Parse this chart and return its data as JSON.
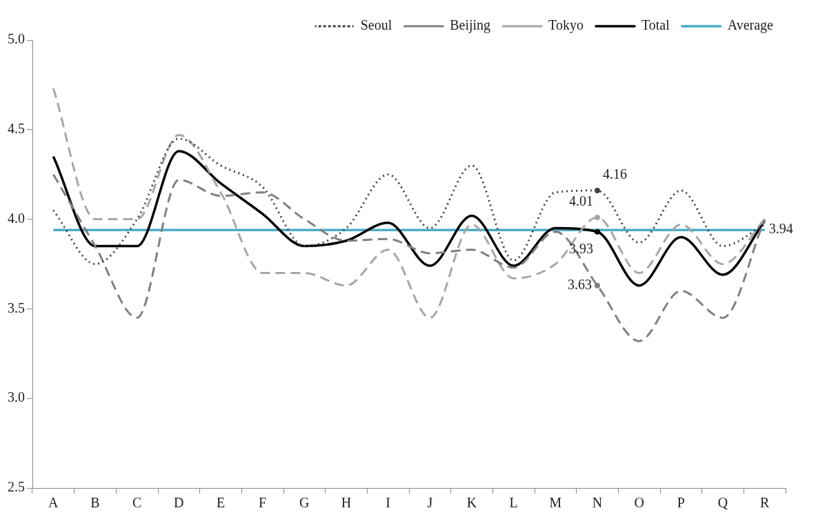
{
  "chart_data": {
    "type": "line",
    "categories": [
      "A",
      "B",
      "C",
      "D",
      "E",
      "F",
      "G",
      "H",
      "I",
      "J",
      "K",
      "L",
      "M",
      "N",
      "O",
      "P",
      "Q",
      "R"
    ],
    "series": [
      {
        "name": "Seoul",
        "color": "#404040",
        "line_style": "dotted",
        "values": [
          4.05,
          3.75,
          4.0,
          4.45,
          4.3,
          4.18,
          3.85,
          3.95,
          4.25,
          3.95,
          4.3,
          3.77,
          4.15,
          4.16,
          3.87,
          4.16,
          3.85,
          3.97
        ],
        "value_labels": [
          null,
          null,
          null,
          null,
          null,
          null,
          null,
          null,
          null,
          null,
          null,
          null,
          null,
          "4.16",
          null,
          null,
          null,
          null
        ]
      },
      {
        "name": "Beijing",
        "color": "#808080",
        "line_style": "dashed",
        "values": [
          4.25,
          3.85,
          3.45,
          4.22,
          4.13,
          4.15,
          4.0,
          3.88,
          3.89,
          3.81,
          3.83,
          3.73,
          3.93,
          3.63,
          3.32,
          3.6,
          3.45,
          4.0
        ],
        "value_labels": [
          null,
          null,
          null,
          null,
          null,
          null,
          null,
          null,
          null,
          null,
          null,
          null,
          null,
          "3.63",
          null,
          null,
          null,
          null
        ]
      },
      {
        "name": "Tokyo",
        "color": "#a6a6a6",
        "line_style": "dashed",
        "values": [
          4.73,
          4.0,
          4.0,
          4.47,
          4.15,
          3.7,
          3.7,
          3.63,
          3.83,
          3.45,
          3.97,
          3.67,
          3.75,
          4.01,
          3.7,
          3.97,
          3.75,
          4.0
        ],
        "value_labels": [
          null,
          null,
          null,
          null,
          null,
          null,
          null,
          null,
          null,
          null,
          null,
          null,
          null,
          "4.01",
          null,
          null,
          null,
          null
        ]
      },
      {
        "name": "Total",
        "color": "#000000",
        "line_style": "solid",
        "values": [
          4.35,
          3.85,
          3.85,
          4.38,
          4.2,
          4.03,
          3.85,
          3.88,
          3.98,
          3.74,
          4.02,
          3.74,
          3.95,
          3.93,
          3.63,
          3.9,
          3.69,
          3.99
        ],
        "value_labels": [
          null,
          null,
          null,
          null,
          null,
          null,
          null,
          null,
          null,
          null,
          null,
          null,
          null,
          "3.93",
          null,
          null,
          null,
          null
        ]
      },
      {
        "name": "Average",
        "color": "#4bacc6",
        "line_style": "solid",
        "values": [
          3.94,
          3.94,
          3.94,
          3.94,
          3.94,
          3.94,
          3.94,
          3.94,
          3.94,
          3.94,
          3.94,
          3.94,
          3.94,
          3.94,
          3.94,
          3.94,
          3.94,
          3.94
        ],
        "value_labels": [
          null,
          null,
          null,
          null,
          null,
          null,
          null,
          null,
          null,
          null,
          null,
          null,
          null,
          null,
          null,
          null,
          null,
          "3.94"
        ]
      }
    ],
    "ylim": [
      2.5,
      5.0
    ],
    "yticks": [
      {
        "value": 2.5,
        "label": "2.5"
      },
      {
        "value": 3.0,
        "label": "3.0"
      },
      {
        "value": 3.5,
        "label": "3.5"
      },
      {
        "value": 4.0,
        "label": "4.0"
      },
      {
        "value": 4.5,
        "label": "4.5"
      },
      {
        "value": 5.0,
        "label": "5.0"
      }
    ],
    "grid": false,
    "legend": "top right",
    "marker": "none"
  }
}
